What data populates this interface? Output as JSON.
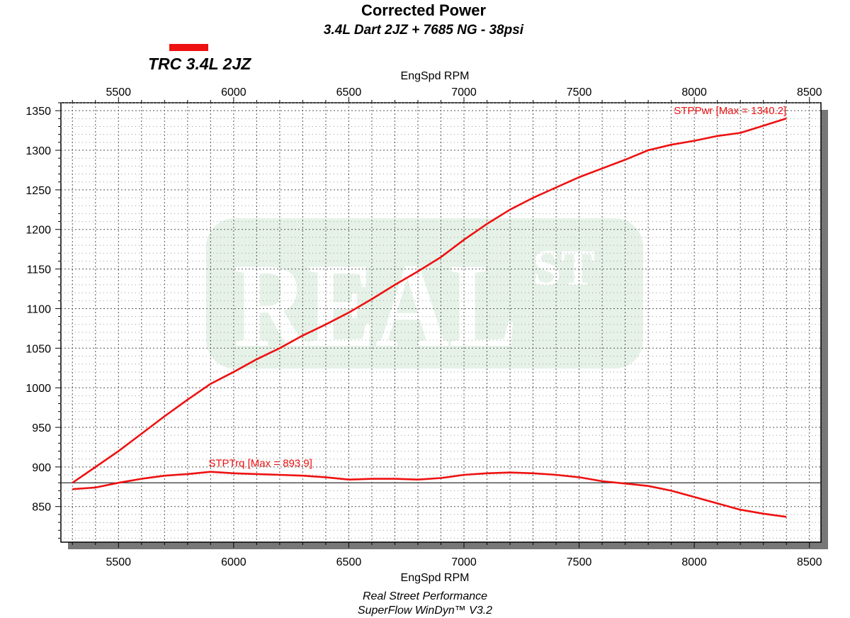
{
  "chart_data": {
    "type": "line",
    "title": "Corrected Power",
    "subtitle": "3.4L Dart 2JZ + 7685 NG - 38psi",
    "legend": {
      "label": "TRC 3.4L 2JZ",
      "color": "#ee1111",
      "placement": "top-left"
    },
    "xlabel": "EngSpd RPM",
    "xlim": [
      5250,
      8550
    ],
    "ylim": [
      805,
      1360
    ],
    "x_ticks": [
      5500,
      6000,
      6500,
      7000,
      7500,
      8000,
      8500
    ],
    "y_ticks": [
      850,
      900,
      950,
      1000,
      1050,
      1100,
      1150,
      1200,
      1250,
      1300,
      1350
    ],
    "reference_line": 880,
    "grid": true,
    "watermark": {
      "main": "REAL",
      "super": "ST"
    },
    "series": [
      {
        "name": "STPPwr",
        "color": "#ee1111",
        "annotation": "STPPwr [Max = 1340.2]",
        "x": [
          5300,
          5400,
          5500,
          5600,
          5700,
          5800,
          5900,
          6000,
          6100,
          6200,
          6300,
          6400,
          6500,
          6600,
          6700,
          6800,
          6900,
          7000,
          7100,
          7200,
          7300,
          7400,
          7500,
          7600,
          7700,
          7800,
          7900,
          8000,
          8100,
          8200,
          8300,
          8400
        ],
        "values": [
          880,
          900,
          920,
          942,
          964,
          985,
          1005,
          1020,
          1036,
          1050,
          1066,
          1080,
          1095,
          1112,
          1130,
          1147,
          1165,
          1187,
          1207,
          1225,
          1240,
          1253,
          1266,
          1277,
          1288,
          1300,
          1307,
          1312,
          1318,
          1322,
          1331,
          1340.2
        ]
      },
      {
        "name": "STPTrq",
        "color": "#ee1111",
        "annotation": "STPTrq [Max = 893.9]",
        "x": [
          5300,
          5400,
          5500,
          5600,
          5700,
          5800,
          5900,
          6000,
          6100,
          6200,
          6300,
          6400,
          6500,
          6600,
          6700,
          6800,
          6900,
          7000,
          7100,
          7200,
          7300,
          7400,
          7500,
          7600,
          7700,
          7800,
          7900,
          8000,
          8100,
          8200,
          8300,
          8400
        ],
        "values": [
          872,
          874,
          880,
          885,
          889,
          891,
          893.9,
          892,
          891,
          890,
          889,
          887,
          884,
          885,
          885,
          884,
          886,
          890,
          892,
          893,
          892,
          890,
          887,
          882,
          879,
          876,
          870,
          862,
          854,
          846,
          841,
          837
        ]
      }
    ]
  },
  "footer": {
    "line1": "Real Street Performance",
    "line2": "SuperFlow WinDyn™ V3.2"
  }
}
